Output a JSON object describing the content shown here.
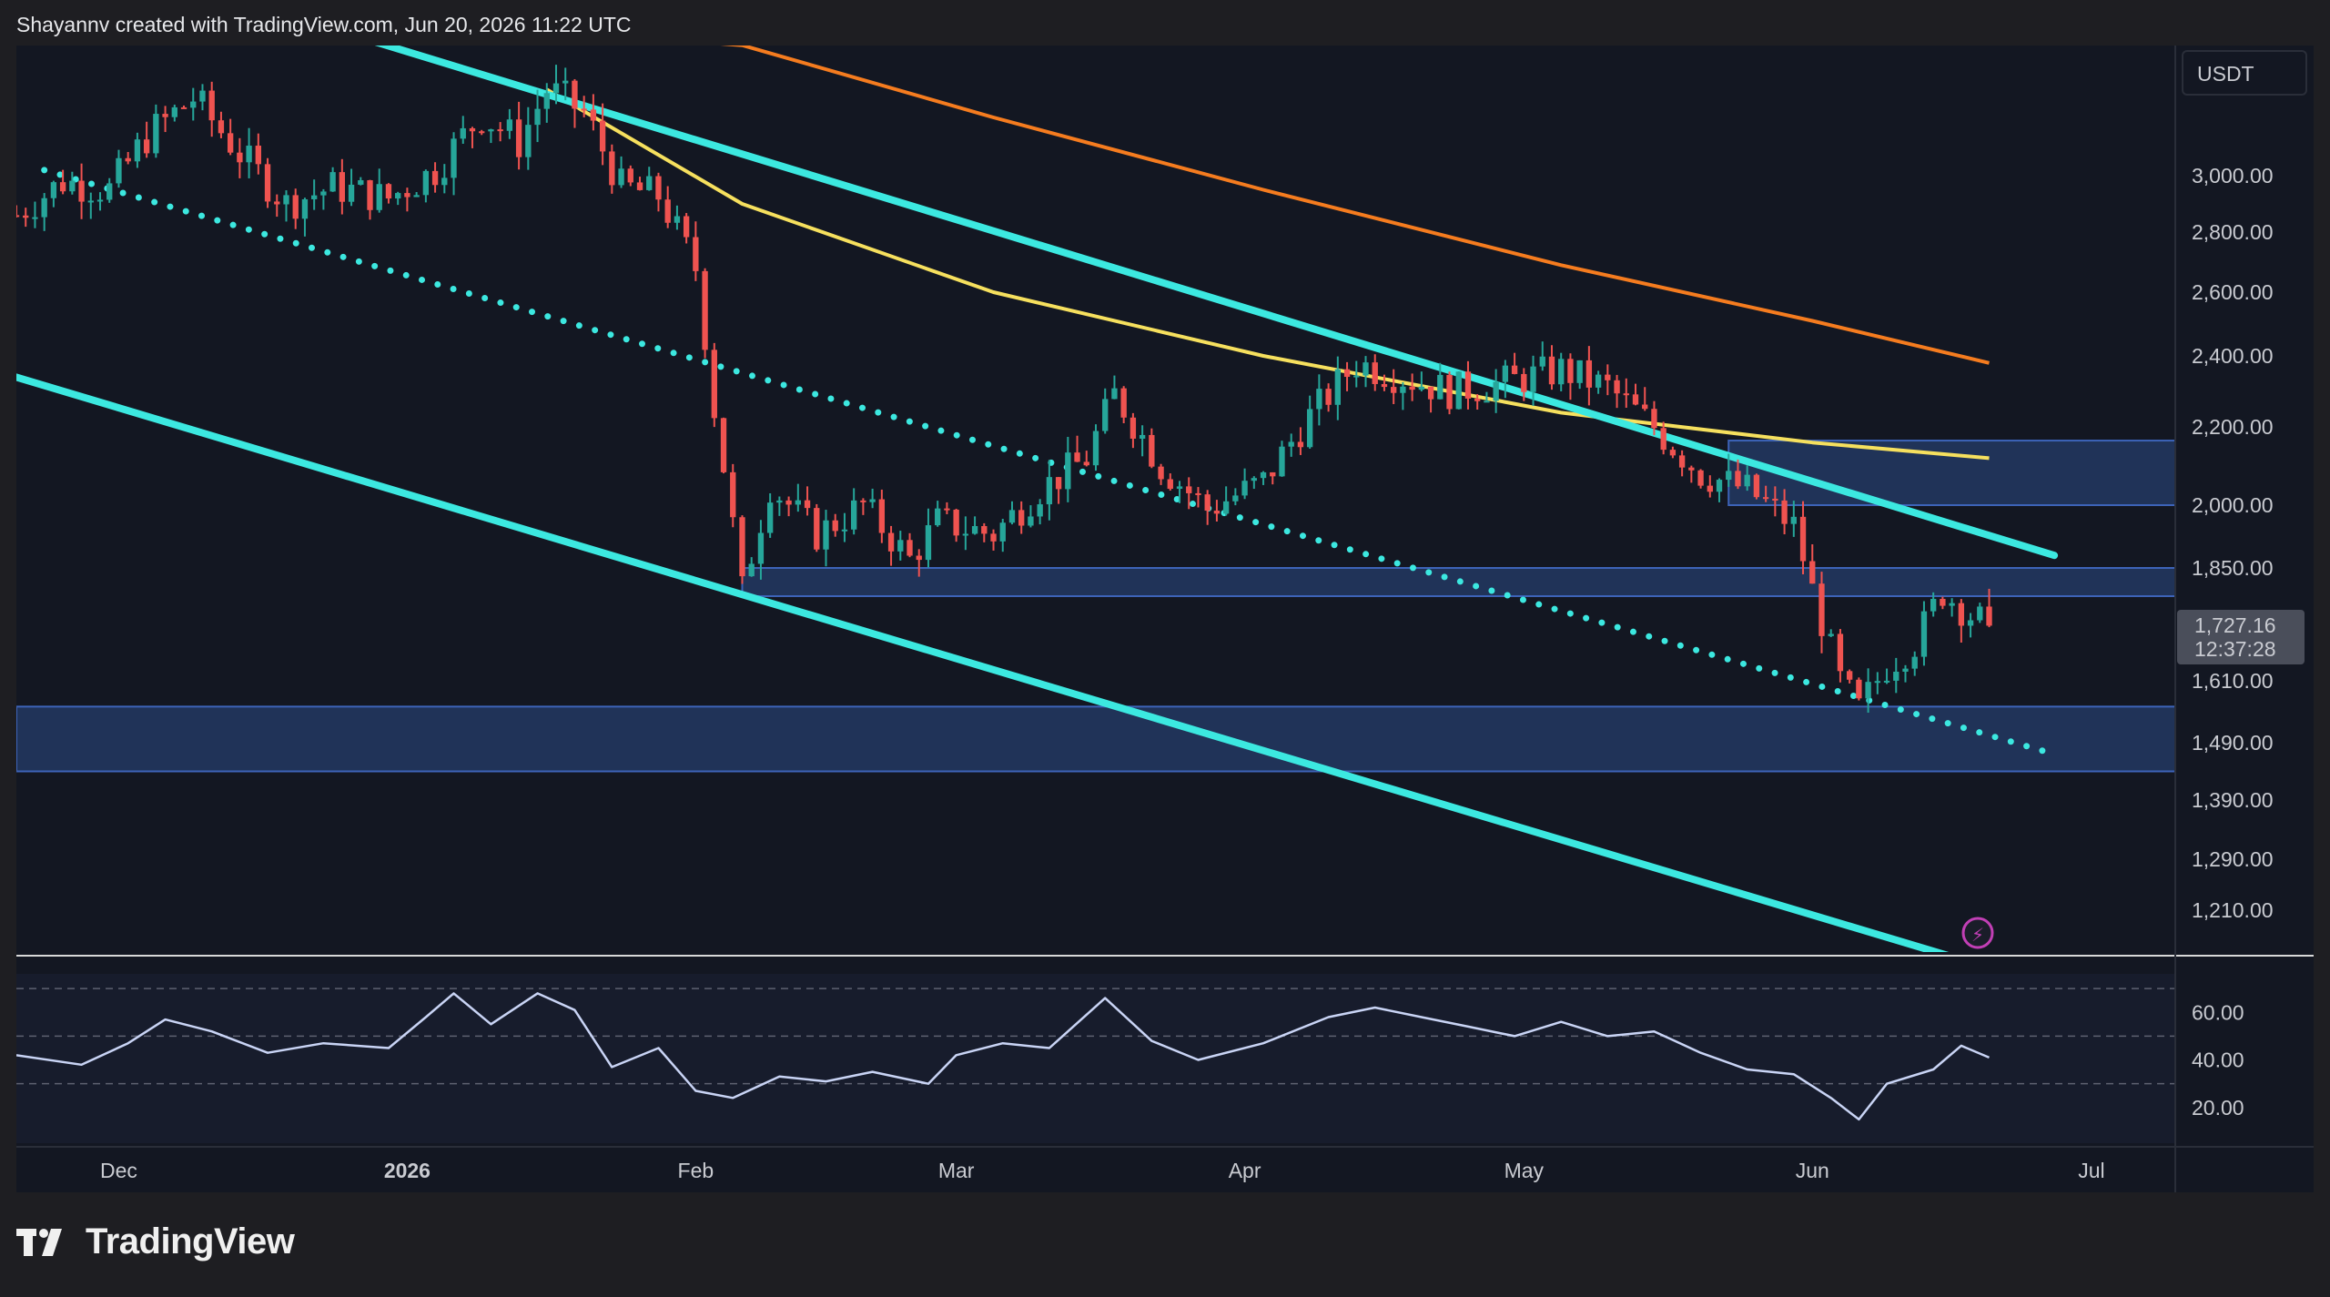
{
  "header": {
    "attribution": "Shayannv created with TradingView.com, Jun 20, 2026 11:22 UTC"
  },
  "footer": {
    "brand": "TradingView"
  },
  "colors": {
    "background": "#131722",
    "candle_up": "#26a69a",
    "candle_down": "#ef5350",
    "channel": "#3ce8e0",
    "ma_short": "#f6e05e",
    "ma_long": "#f57c1f",
    "zone": "#2b4a85",
    "rsi": "#c9d4f5"
  },
  "price_axis": {
    "currency": "USDT",
    "ticks": [
      "3,000.00",
      "2,800.00",
      "2,600.00",
      "2,400.00",
      "2,200.00",
      "2,000.00",
      "1,850.00",
      "1,610.00",
      "1,490.00",
      "1,390.00",
      "1,290.00",
      "1,210.00"
    ],
    "last_price": "1,727.16",
    "countdown": "12:37:28"
  },
  "rsi_axis": {
    "ticks": [
      "60.00",
      "40.00",
      "20.00"
    ]
  },
  "time_axis": {
    "labels": [
      {
        "text": "Dec",
        "bold": false
      },
      {
        "text": "2026",
        "bold": true
      },
      {
        "text": "Feb",
        "bold": false
      },
      {
        "text": "Mar",
        "bold": false
      },
      {
        "text": "Apr",
        "bold": false
      },
      {
        "text": "May",
        "bold": false
      },
      {
        "text": "Jun",
        "bold": false
      },
      {
        "text": "Jul",
        "bold": false
      }
    ]
  },
  "chart_data": {
    "type": "candlestick",
    "title": "",
    "interval": "1D",
    "ylabel": "USDT",
    "ylim": [
      1150,
      3200
    ],
    "x_start_date": "2025-11-20",
    "x_end_date": "2026-07-10",
    "close_series": [
      [
        "2025-11-20",
        2860
      ],
      [
        "2025-11-25",
        2980
      ],
      [
        "2025-11-30",
        2950
      ],
      [
        "2025-12-04",
        3140
      ],
      [
        "2025-12-09",
        3280
      ],
      [
        "2025-12-14",
        3080
      ],
      [
        "2025-12-19",
        2900
      ],
      [
        "2025-12-24",
        2960
      ],
      [
        "2025-12-30",
        2920
      ],
      [
        "2026-01-04",
        3020
      ],
      [
        "2026-01-09",
        3220
      ],
      [
        "2026-01-13",
        3120
      ],
      [
        "2026-01-16",
        3310
      ],
      [
        "2026-01-20",
        3230
      ],
      [
        "2026-01-24",
        2960
      ],
      [
        "2026-01-28",
        2930
      ],
      [
        "2026-02-01",
        2680
      ],
      [
        "2026-02-03",
        2250
      ],
      [
        "2026-02-06",
        1800
      ],
      [
        "2026-02-09",
        2050
      ],
      [
        "2026-02-14",
        1930
      ],
      [
        "2026-02-19",
        2000
      ],
      [
        "2026-02-24",
        1870
      ],
      [
        "2026-02-27",
        1960
      ],
      [
        "2026-03-05",
        1930
      ],
      [
        "2026-03-10",
        2040
      ],
      [
        "2026-03-15",
        2120
      ],
      [
        "2026-03-18",
        2290
      ],
      [
        "2026-03-23",
        2100
      ],
      [
        "2026-03-28",
        1990
      ],
      [
        "2026-04-03",
        2060
      ],
      [
        "2026-04-08",
        2230
      ],
      [
        "2026-04-13",
        2380
      ],
      [
        "2026-04-18",
        2340
      ],
      [
        "2026-04-23",
        2300
      ],
      [
        "2026-04-28",
        2320
      ],
      [
        "2026-05-05",
        2360
      ],
      [
        "2026-05-10",
        2310
      ],
      [
        "2026-05-15",
        2200
      ],
      [
        "2026-05-20",
        2080
      ],
      [
        "2026-05-25",
        2040
      ],
      [
        "2026-05-30",
        1950
      ],
      [
        "2026-06-01",
        1800
      ],
      [
        "2026-06-04",
        1610
      ],
      [
        "2026-06-06",
        1555
      ],
      [
        "2026-06-09",
        1640
      ],
      [
        "2026-06-12",
        1690
      ],
      [
        "2026-06-15",
        1800
      ],
      [
        "2026-06-18",
        1750
      ],
      [
        "2026-06-20",
        1727.16
      ]
    ],
    "moving_averages": [
      {
        "color": "#f6e05e",
        "points": [
          [
            "2026-01-16",
            3310
          ],
          [
            "2026-02-06",
            2900
          ],
          [
            "2026-03-05",
            2600
          ],
          [
            "2026-04-03",
            2400
          ],
          [
            "2026-05-05",
            2240
          ],
          [
            "2026-06-01",
            2160
          ],
          [
            "2026-06-20",
            2120
          ]
        ]
      },
      {
        "color": "#f57c1f",
        "points": [
          [
            "2025-11-20",
            3540
          ],
          [
            "2025-12-30",
            3560
          ],
          [
            "2026-02-06",
            3470
          ],
          [
            "2026-03-05",
            3210
          ],
          [
            "2026-04-03",
            2950
          ],
          [
            "2026-05-05",
            2690
          ],
          [
            "2026-06-01",
            2510
          ],
          [
            "2026-06-20",
            2380
          ]
        ]
      }
    ],
    "channel_lines": [
      {
        "style": "solid",
        "points": [
          [
            "2025-12-19",
            3580
          ],
          [
            "2026-06-27",
            1880
          ]
        ]
      },
      {
        "style": "solid",
        "points": [
          [
            "2025-11-20",
            2340
          ],
          [
            "2026-06-25",
            1165
          ]
        ]
      },
      {
        "style": "dotted",
        "points": [
          [
            "2025-11-23",
            3020
          ],
          [
            "2026-06-27",
            1470
          ]
        ]
      }
    ],
    "zones": [
      {
        "from": "2026-05-23",
        "to": "2026-07-10",
        "low": 2000,
        "high": 2165
      },
      {
        "from": "2026-02-06",
        "to": "2026-07-10",
        "low": 1790,
        "high": 1850
      },
      {
        "from": "2025-11-20",
        "to": "2026-07-10",
        "low": 1440,
        "high": 1560
      }
    ],
    "rsi": {
      "ylim": [
        5,
        80
      ],
      "levels": [
        70,
        50,
        30
      ],
      "values": [
        [
          "2025-11-20",
          42
        ],
        [
          "2025-11-27",
          38
        ],
        [
          "2025-12-02",
          47
        ],
        [
          "2025-12-06",
          57
        ],
        [
          "2025-12-11",
          52
        ],
        [
          "2025-12-17",
          43
        ],
        [
          "2025-12-23",
          47
        ],
        [
          "2025-12-30",
          45
        ],
        [
          "2026-01-03",
          58
        ],
        [
          "2026-01-06",
          68
        ],
        [
          "2026-01-10",
          55
        ],
        [
          "2026-01-15",
          68
        ],
        [
          "2026-01-19",
          61
        ],
        [
          "2026-01-23",
          37
        ],
        [
          "2026-01-28",
          45
        ],
        [
          "2026-02-01",
          27
        ],
        [
          "2026-02-05",
          24
        ],
        [
          "2026-02-10",
          33
        ],
        [
          "2026-02-15",
          31
        ],
        [
          "2026-02-20",
          35
        ],
        [
          "2026-02-26",
          30
        ],
        [
          "2026-03-01",
          42
        ],
        [
          "2026-03-06",
          47
        ],
        [
          "2026-03-11",
          45
        ],
        [
          "2026-03-17",
          66
        ],
        [
          "2026-03-22",
          48
        ],
        [
          "2026-03-27",
          40
        ],
        [
          "2026-04-03",
          47
        ],
        [
          "2026-04-10",
          58
        ],
        [
          "2026-04-15",
          62
        ],
        [
          "2026-04-20",
          58
        ],
        [
          "2026-04-25",
          54
        ],
        [
          "2026-04-30",
          50
        ],
        [
          "2026-05-05",
          56
        ],
        [
          "2026-05-10",
          50
        ],
        [
          "2026-05-15",
          52
        ],
        [
          "2026-05-20",
          43
        ],
        [
          "2026-05-25",
          36
        ],
        [
          "2026-05-30",
          34
        ],
        [
          "2026-06-03",
          24
        ],
        [
          "2026-06-06",
          15
        ],
        [
          "2026-06-09",
          30
        ],
        [
          "2026-06-14",
          36
        ],
        [
          "2026-06-17",
          46
        ],
        [
          "2026-06-20",
          41
        ]
      ]
    }
  }
}
